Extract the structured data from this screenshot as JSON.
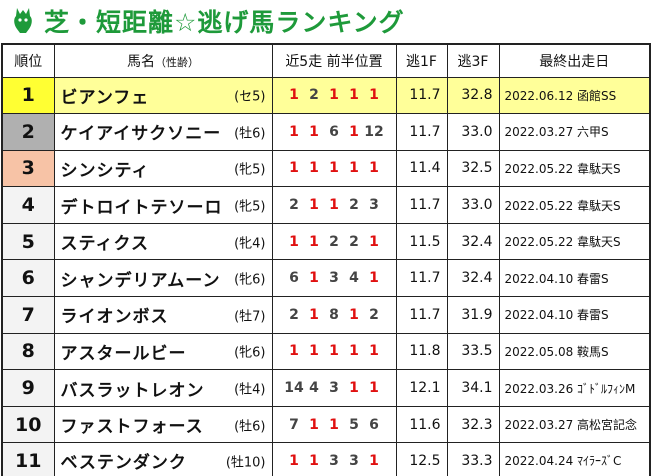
{
  "title": "芝・短距離☆逃げ馬ランキング",
  "colors": {
    "title": "#1e9a3a",
    "position_one": "#e01010",
    "position_other": "#444444",
    "gold": "#ffff33",
    "silver": "#b0b0b0",
    "bronze": "#f7c3a6",
    "highlight_row": "#ffff99"
  },
  "headers": {
    "rank": "順位",
    "name": "馬名",
    "name_sub": "（性齢）",
    "positions": "近5走 前半位置",
    "f1": "逃1F",
    "f3": "逃3F",
    "last_race": "最終出走日"
  },
  "rows": [
    {
      "rank": "1",
      "name": "ビアンフェ",
      "sex": "(セ5)",
      "positions": [
        "1",
        "2",
        "1",
        "1",
        "1"
      ],
      "f1": "11.7",
      "f3": "32.8",
      "last": "2022.06.12 函館SS"
    },
    {
      "rank": "2",
      "name": "ケイアイサクソニー",
      "sex": "(牡6)",
      "positions": [
        "1",
        "1",
        "6",
        "1",
        "12"
      ],
      "f1": "11.7",
      "f3": "33.0",
      "last": "2022.03.27 六甲S"
    },
    {
      "rank": "3",
      "name": "シンシティ",
      "sex": "(牝5)",
      "positions": [
        "1",
        "1",
        "1",
        "1",
        "1"
      ],
      "f1": "11.4",
      "f3": "32.5",
      "last": "2022.05.22 韋駄天S"
    },
    {
      "rank": "4",
      "name": "デトロイトテソーロ",
      "sex": "(牝5)",
      "positions": [
        "2",
        "1",
        "1",
        "2",
        "3"
      ],
      "f1": "11.7",
      "f3": "33.0",
      "last": "2022.05.22 韋駄天S"
    },
    {
      "rank": "5",
      "name": "スティクス",
      "sex": "(牝4)",
      "positions": [
        "1",
        "1",
        "2",
        "2",
        "1"
      ],
      "f1": "11.5",
      "f3": "32.4",
      "last": "2022.05.22 韋駄天S"
    },
    {
      "rank": "6",
      "name": "シャンデリアムーン",
      "sex": "(牝6)",
      "positions": [
        "6",
        "1",
        "3",
        "4",
        "1"
      ],
      "f1": "11.7",
      "f3": "32.4",
      "last": "2022.04.10 春雷S"
    },
    {
      "rank": "7",
      "name": "ライオンボス",
      "sex": "(牡7)",
      "positions": [
        "2",
        "1",
        "8",
        "1",
        "2"
      ],
      "f1": "11.7",
      "f3": "31.9",
      "last": "2022.04.10 春雷S"
    },
    {
      "rank": "8",
      "name": "アスタールビー",
      "sex": "(牝6)",
      "positions": [
        "1",
        "1",
        "1",
        "1",
        "1"
      ],
      "f1": "11.8",
      "f3": "33.5",
      "last": "2022.05.08 鞍馬S"
    },
    {
      "rank": "9",
      "name": "バスラットレオン",
      "sex": "(牡4)",
      "positions": [
        "14",
        "4",
        "3",
        "1",
        "1"
      ],
      "f1": "12.1",
      "f3": "34.1",
      "last": "2022.03.26 ｺﾞﾄﾞﾙﾌｨﾝM"
    },
    {
      "rank": "10",
      "name": "ファストフォース",
      "sex": "(牡6)",
      "positions": [
        "7",
        "1",
        "1",
        "5",
        "6"
      ],
      "f1": "11.6",
      "f3": "32.3",
      "last": "2022.03.27 高松宮記念"
    },
    {
      "rank": "11",
      "name": "ベステンダンク",
      "sex": "(牡10)",
      "positions": [
        "1",
        "1",
        "3",
        "3",
        "1"
      ],
      "f1": "12.5",
      "f3": "33.3",
      "last": "2022.04.24 ﾏｲﾗｰｽﾞC"
    }
  ]
}
